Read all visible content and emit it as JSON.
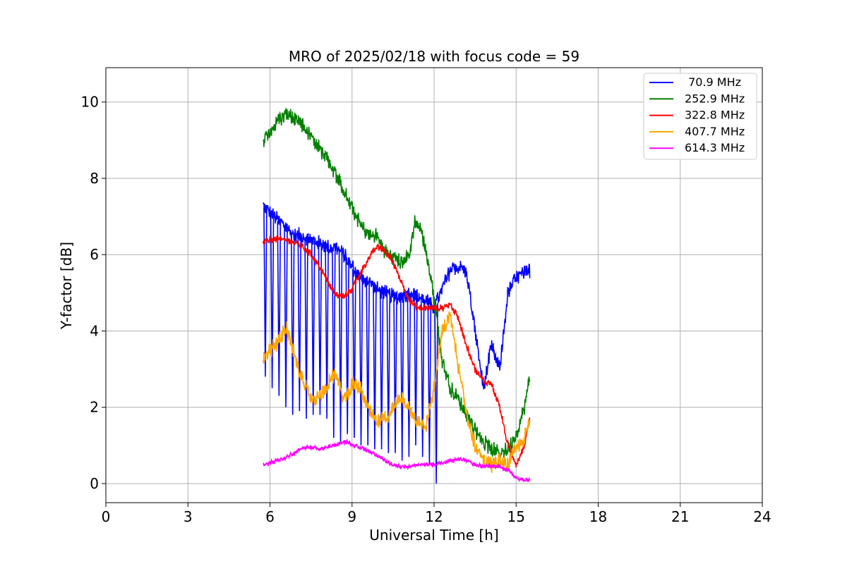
{
  "chart_data": {
    "type": "line",
    "title": "MRO of 2025/02/18 with focus code = 59",
    "xlabel": "Universal Time [h]",
    "ylabel": "Y-factor [dB]",
    "xlim": [
      0,
      24
    ],
    "ylim": [
      -0.5,
      10.9
    ],
    "xticks": [
      0,
      3,
      6,
      9,
      12,
      15,
      18,
      21,
      24
    ],
    "yticks": [
      0,
      2,
      4,
      6,
      8,
      10
    ],
    "grid": true,
    "legend_position": "top-right",
    "series": [
      {
        "name": " 70.9 MHz",
        "color": "#0000ff",
        "x": [
          5.75,
          6.0,
          6.3,
          6.6,
          6.9,
          7.2,
          7.5,
          7.8,
          8.1,
          8.4,
          8.7,
          9.0,
          9.3,
          9.6,
          9.9,
          10.2,
          10.5,
          10.8,
          11.1,
          11.4,
          11.7,
          12.0,
          12.3,
          12.6,
          12.9,
          13.2,
          13.5,
          13.8,
          14.1,
          14.4,
          14.7,
          15.0,
          15.3,
          15.5
        ],
        "values": [
          7.3,
          7.1,
          6.9,
          6.7,
          6.5,
          6.5,
          6.4,
          6.3,
          6.2,
          6.2,
          6.0,
          5.7,
          5.4,
          5.3,
          5.1,
          5.0,
          4.9,
          4.9,
          5.0,
          4.9,
          4.8,
          4.6,
          5.1,
          5.6,
          5.7,
          5.5,
          4.0,
          2.5,
          3.6,
          3.0,
          5.0,
          5.4,
          5.5,
          5.6
        ],
        "dips_x": [
          5.83,
          6.08,
          6.33,
          6.58,
          6.83,
          7.08,
          7.33,
          7.58,
          7.83,
          8.08,
          8.33,
          8.58,
          8.83,
          9.08,
          9.33,
          9.58,
          9.83,
          10.08,
          10.33,
          10.58,
          10.83,
          11.08,
          11.33,
          11.58,
          11.83,
          12.08
        ],
        "dips_y": [
          2.8,
          2.5,
          2.3,
          2.0,
          1.8,
          1.9,
          1.7,
          1.8,
          1.8,
          1.7,
          1.2,
          1.1,
          1.3,
          1.2,
          1.0,
          1.0,
          0.9,
          0.9,
          0.8,
          0.8,
          0.6,
          0.7,
          1.0,
          0.7,
          0.5,
          0.0
        ]
      },
      {
        "name": "252.9 MHz",
        "color": "#008000",
        "x": [
          5.75,
          6.0,
          6.3,
          6.6,
          6.9,
          7.2,
          7.5,
          7.8,
          8.1,
          8.4,
          8.7,
          9.0,
          9.3,
          9.6,
          9.9,
          10.2,
          10.5,
          10.8,
          11.1,
          11.3,
          11.5,
          11.7,
          11.9,
          12.1,
          12.3,
          12.6,
          12.9,
          13.2,
          13.5,
          13.8,
          14.1,
          14.4,
          14.7,
          15.0,
          15.3,
          15.5
        ],
        "values": [
          9.0,
          9.2,
          9.5,
          9.7,
          9.6,
          9.4,
          9.1,
          8.8,
          8.5,
          8.1,
          7.7,
          7.2,
          6.8,
          6.5,
          6.5,
          6.1,
          5.9,
          5.8,
          6.0,
          6.9,
          6.7,
          6.1,
          5.3,
          4.3,
          3.2,
          2.5,
          2.2,
          1.8,
          1.4,
          1.1,
          0.9,
          0.8,
          0.9,
          1.3,
          2.0,
          2.8
        ]
      },
      {
        "name": "322.8 MHz",
        "color": "#ff0000",
        "x": [
          5.75,
          6.0,
          6.3,
          6.6,
          6.9,
          7.2,
          7.5,
          7.8,
          8.1,
          8.4,
          8.7,
          9.0,
          9.3,
          9.6,
          9.9,
          10.2,
          10.5,
          10.8,
          11.1,
          11.4,
          11.7,
          12.0,
          12.3,
          12.6,
          12.9,
          13.2,
          13.5,
          13.8,
          14.1,
          14.4,
          14.7,
          15.0,
          15.3,
          15.5
        ],
        "values": [
          6.3,
          6.4,
          6.4,
          6.4,
          6.3,
          6.2,
          6.0,
          5.7,
          5.3,
          4.95,
          4.9,
          5.1,
          5.5,
          5.9,
          6.2,
          6.1,
          5.8,
          5.3,
          4.8,
          4.6,
          4.6,
          4.6,
          4.6,
          4.7,
          4.3,
          3.6,
          3.0,
          2.7,
          2.6,
          2.0,
          1.0,
          0.5,
          1.0,
          1.8
        ]
      },
      {
        "name": "407.7 MHz",
        "color": "#ffa500",
        "x": [
          5.75,
          6.0,
          6.3,
          6.6,
          6.9,
          7.2,
          7.5,
          7.8,
          8.1,
          8.4,
          8.7,
          9.0,
          9.3,
          9.6,
          9.9,
          10.2,
          10.5,
          10.8,
          11.1,
          11.4,
          11.7,
          12.0,
          12.3,
          12.6,
          12.9,
          13.2,
          13.5,
          13.8,
          14.1,
          14.4,
          14.7,
          15.0,
          15.3,
          15.5
        ],
        "values": [
          3.2,
          3.5,
          3.7,
          4.1,
          3.3,
          2.7,
          2.2,
          2.3,
          2.6,
          2.9,
          2.2,
          2.6,
          2.5,
          1.9,
          1.6,
          1.7,
          2.0,
          2.3,
          2.0,
          1.6,
          1.5,
          2.5,
          4.0,
          4.4,
          3.0,
          1.8,
          1.0,
          0.6,
          0.5,
          0.6,
          0.5,
          0.9,
          1.2,
          1.6
        ]
      },
      {
        "name": "614.3 MHz",
        "color": "#ff00ff",
        "x": [
          5.75,
          6.0,
          6.3,
          6.6,
          6.9,
          7.2,
          7.5,
          7.8,
          8.1,
          8.4,
          8.7,
          9.0,
          9.3,
          9.6,
          9.9,
          10.2,
          10.5,
          10.8,
          11.1,
          11.4,
          11.7,
          12.0,
          12.3,
          12.6,
          12.9,
          13.2,
          13.5,
          13.8,
          14.1,
          14.4,
          14.7,
          15.0,
          15.3,
          15.5
        ],
        "values": [
          0.5,
          0.55,
          0.6,
          0.7,
          0.8,
          0.95,
          0.95,
          0.9,
          0.95,
          1.0,
          1.1,
          1.05,
          0.95,
          0.85,
          0.75,
          0.6,
          0.5,
          0.45,
          0.45,
          0.5,
          0.5,
          0.5,
          0.55,
          0.6,
          0.65,
          0.6,
          0.5,
          0.45,
          0.45,
          0.45,
          0.35,
          0.15,
          0.1,
          0.1
        ]
      }
    ]
  }
}
